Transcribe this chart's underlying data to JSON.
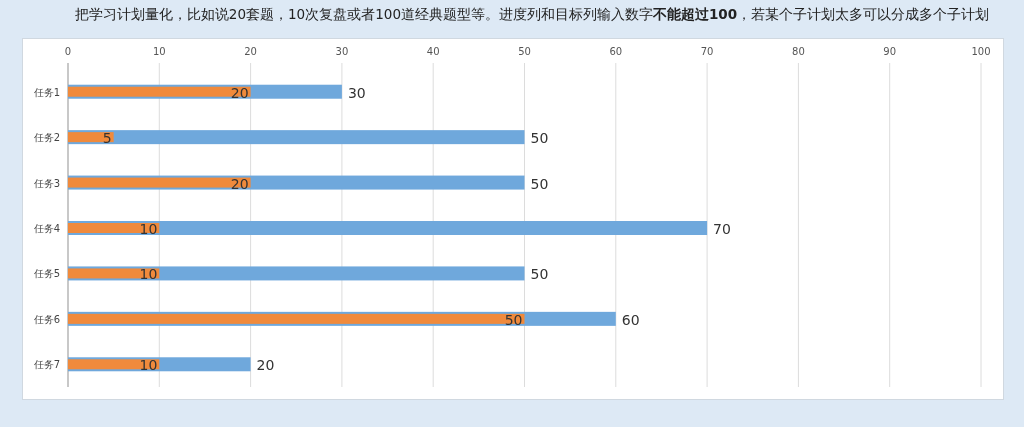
{
  "chart_data": {
    "type": "bar",
    "orientation": "horizontal",
    "title": "把学习计划量化，比如说20套题，10次复盘或者100道经典题型等。进度列和目标列输入数字**不能超过100**，若某个子计划太多可以分成多个子计划",
    "categories": [
      "任务1",
      "任务2",
      "任务3",
      "任务4",
      "任务5",
      "任务6",
      "任务7"
    ],
    "series": [
      {
        "color": "#6fa8dc",
        "values": [
          30,
          50,
          50,
          70,
          50,
          60,
          20
        ]
      },
      {
        "color": "#f08a3c",
        "values": [
          20,
          5,
          20,
          10,
          10,
          50,
          10
        ]
      }
    ],
    "xlim": [
      0,
      100
    ],
    "xticks": [
      0,
      10,
      20,
      30,
      40,
      50,
      60,
      70,
      80,
      90,
      100
    ],
    "grid": "x",
    "data_labels": true
  }
}
